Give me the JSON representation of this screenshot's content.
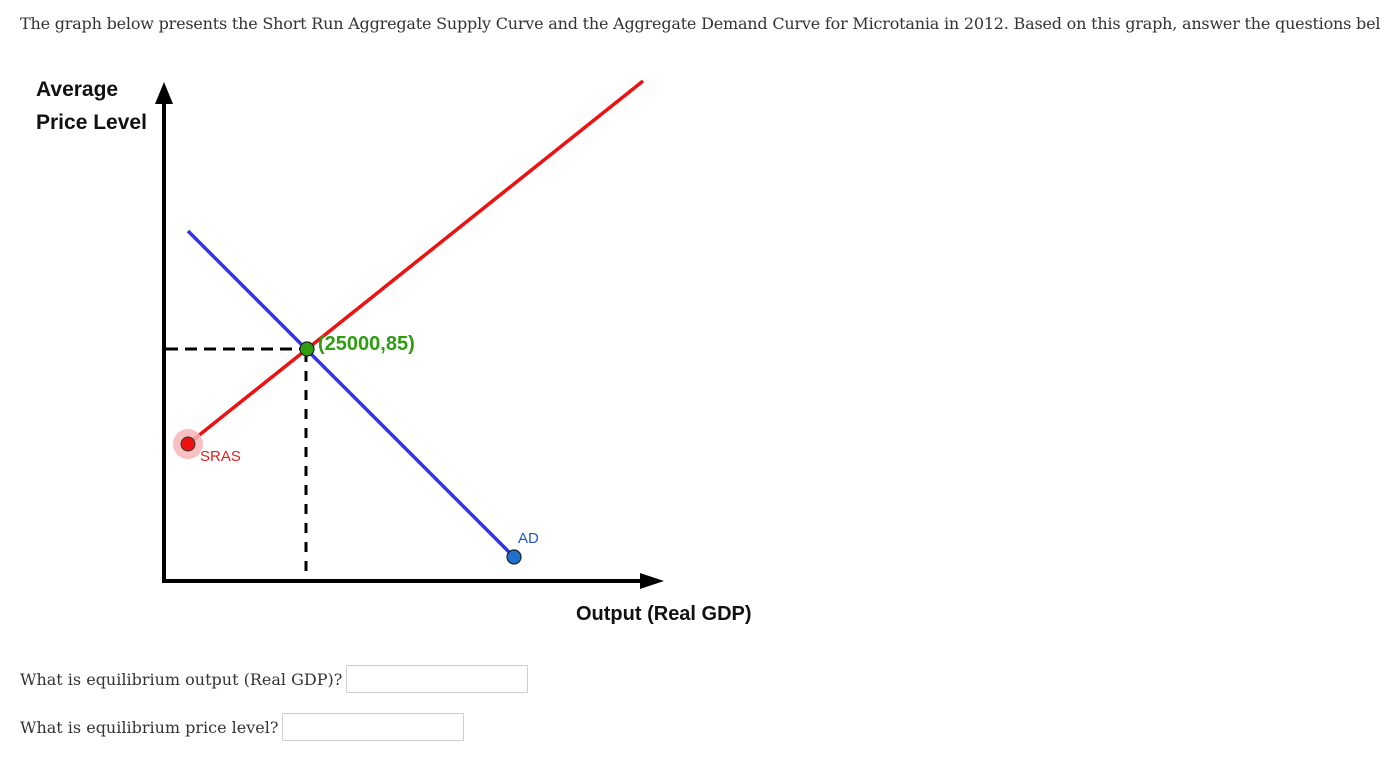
{
  "intro_text": "The graph below presents the Short Run Aggregate Supply Curve and the Aggregate Demand Curve for Microtania in 2012. Based on this graph, answer the questions below:",
  "graph": {
    "y_axis_label_line1": "Average",
    "y_axis_label_line2": "Price Level",
    "x_axis_label": "Output (Real GDP)",
    "sras_label": "SRAS",
    "ad_label": "AD",
    "equilibrium_label": "(25000,85)",
    "colors": {
      "sras": "#ee1111",
      "ad": "#3333ee",
      "equilibrium": "#2e9e10",
      "ad_label": "#2255cc",
      "sras_label": "#dd2222",
      "axes": "#000000"
    }
  },
  "questions": [
    {
      "label": "What is equilibrium output (Real GDP)?",
      "value": "",
      "placeholder": ""
    },
    {
      "label": "What is equilibrium price level?",
      "value": "",
      "placeholder": ""
    }
  ]
}
